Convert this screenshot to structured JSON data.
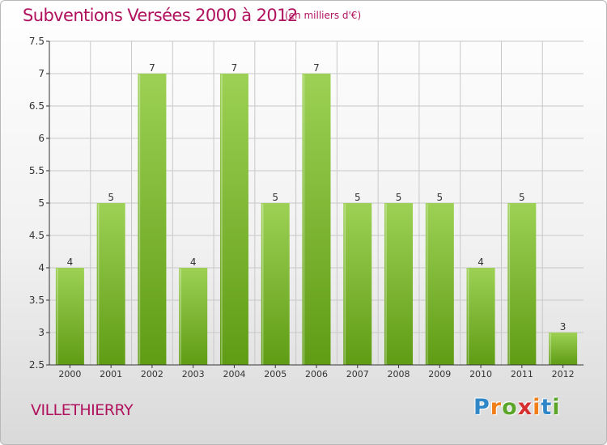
{
  "header": {
    "title": "Subventions Versées 2000 à 2012",
    "subtitle": "(en milliers d'€)"
  },
  "footer": {
    "commune": "VILLETHIERRY",
    "logo_letters": [
      "P",
      "r",
      "o",
      "x",
      "i",
      "t",
      "i"
    ],
    "logo_colors": [
      "#2f87c8",
      "#f07f1a",
      "#5aa52a",
      "#d62f2f",
      "#f07f1a",
      "#2f87c8",
      "#5aa52a"
    ]
  },
  "colors": {
    "bar_light": "#9dd155",
    "bar_dark": "#5f9c14",
    "grid": "#c8c8c8",
    "axis": "#333333",
    "accent_text": "#b0125e"
  },
  "chart_data": {
    "type": "bar",
    "categories": [
      "2000",
      "2001",
      "2002",
      "2003",
      "2004",
      "2005",
      "2006",
      "2007",
      "2008",
      "2009",
      "2010",
      "2011",
      "2012"
    ],
    "values": [
      4,
      5,
      7,
      4,
      7,
      5,
      7,
      5,
      5,
      5,
      4,
      5,
      3
    ],
    "title": "Subventions Versées 2000 à 2012",
    "xlabel": "",
    "ylabel": "",
    "ylim": [
      2.5,
      7.5
    ],
    "yticks": [
      2.5,
      3,
      3.5,
      4,
      4.5,
      5,
      5.5,
      6,
      6.5,
      7,
      7.5
    ],
    "ytick_labels": [
      "2.5",
      "3",
      "3.5",
      "4",
      "4.5",
      "5",
      "5.5",
      "6",
      "6.5",
      "7",
      "7.5"
    ],
    "grid": true,
    "data_labels": true
  }
}
